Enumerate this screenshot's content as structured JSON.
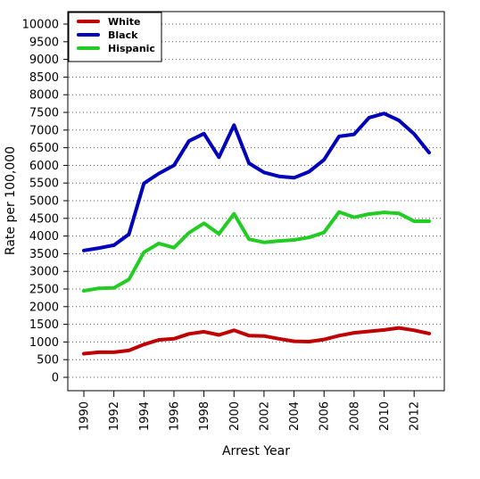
{
  "chart_data": {
    "type": "line",
    "title": "",
    "xlabel": "Arrest Year",
    "ylabel": "Rate per 100,000",
    "xlim": [
      1990,
      2013
    ],
    "ylim": [
      0,
      10000
    ],
    "x_ticks": [
      1990,
      1992,
      1994,
      1996,
      1998,
      2000,
      2002,
      2004,
      2006,
      2008,
      2010,
      2012
    ],
    "y_ticks": [
      0,
      500,
      1000,
      1500,
      2000,
      2500,
      3000,
      3500,
      4000,
      4500,
      5000,
      5500,
      6000,
      6500,
      7000,
      7500,
      8000,
      8500,
      9000,
      9500,
      10000
    ],
    "grid": "horizontal dotted",
    "legend_position": "top-left",
    "x": [
      1990,
      1991,
      1992,
      1993,
      1994,
      1995,
      1996,
      1997,
      1998,
      1999,
      2000,
      2001,
      2002,
      2003,
      2004,
      2005,
      2006,
      2007,
      2008,
      2009,
      2010,
      2011,
      2012,
      2013
    ],
    "series": [
      {
        "name": "White",
        "color": "#c00000",
        "values": [
          670,
          710,
          710,
          760,
          930,
          1060,
          1090,
          1230,
          1290,
          1200,
          1330,
          1180,
          1170,
          1090,
          1020,
          1010,
          1070,
          1180,
          1260,
          1300,
          1340,
          1400,
          1330,
          1240
        ]
      },
      {
        "name": "Black",
        "color": "#0000bb",
        "values": [
          3590,
          3660,
          3740,
          4050,
          5490,
          5770,
          6000,
          6690,
          6900,
          6230,
          7140,
          6060,
          5800,
          5690,
          5650,
          5820,
          6160,
          6820,
          6880,
          7350,
          7470,
          7270,
          6890,
          6360
        ]
      },
      {
        "name": "Hispanic",
        "color": "#22cc22",
        "values": [
          2450,
          2520,
          2530,
          2770,
          3540,
          3790,
          3670,
          4090,
          4360,
          4060,
          4630,
          3910,
          3820,
          3860,
          3890,
          3960,
          4100,
          4680,
          4530,
          4620,
          4670,
          4640,
          4420,
          4420
        ]
      }
    ]
  }
}
